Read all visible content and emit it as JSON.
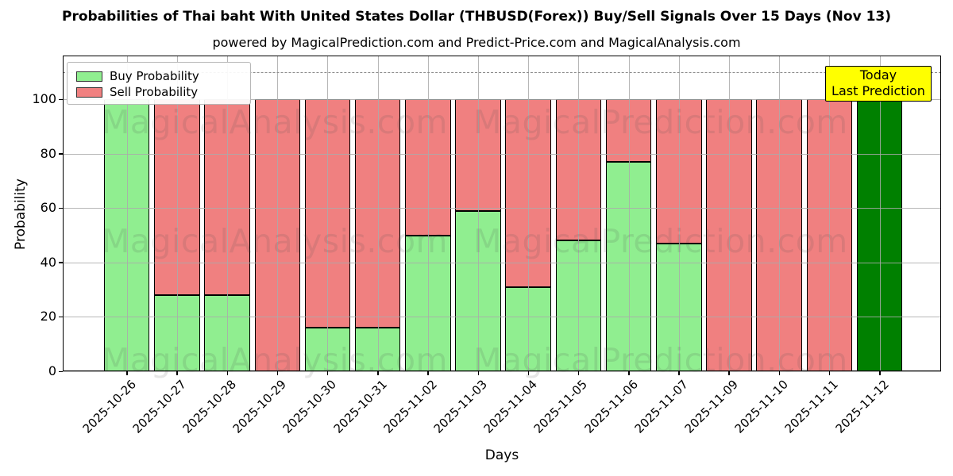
{
  "title": "Probabilities of Thai baht With United States Dollar (THBUSD(Forex)) Buy/Sell Signals Over 15 Days (Nov 13)",
  "subtitle": "powered by MagicalPrediction.com and Predict-Price.com and MagicalAnalysis.com",
  "axes": {
    "xlabel": "Days",
    "ylabel": "Probability",
    "yticks": [
      0,
      20,
      40,
      60,
      80,
      100
    ]
  },
  "legend": {
    "items": [
      {
        "label": "Buy Probability",
        "color": "#90ee90"
      },
      {
        "label": "Sell Probability",
        "color": "#f08080"
      }
    ]
  },
  "annotation": {
    "lines": [
      "Today",
      "Last Prediction"
    ],
    "bg_color": "#ffff00"
  },
  "watermarks": [
    "MagicalAnalysis.com",
    "MagicalPrediction.com"
  ],
  "chart_data": {
    "type": "bar",
    "stacked": true,
    "title": "Probabilities of Thai baht With United States Dollar (THBUSD(Forex)) Buy/Sell Signals Over 15 Days (Nov 13)",
    "xlabel": "Days",
    "ylabel": "Probability",
    "ylim": [
      0,
      116
    ],
    "grid": true,
    "legend_position": "upper left",
    "dashed_line_y": 110,
    "categories": [
      "2025-10-26",
      "2025-10-27",
      "2025-10-28",
      "2025-10-29",
      "2025-10-30",
      "2025-10-31",
      "2025-11-02",
      "2025-11-03",
      "2025-11-04",
      "2025-11-05",
      "2025-11-06",
      "2025-11-07",
      "2025-11-09",
      "2025-11-10",
      "2025-11-11",
      "2025-11-12"
    ],
    "series": [
      {
        "name": "Buy Probability",
        "color": "#90ee90",
        "values": [
          100,
          28,
          28,
          0,
          16,
          16,
          50,
          59,
          31,
          48,
          77,
          47,
          0,
          0,
          0,
          0
        ]
      },
      {
        "name": "Sell Probability",
        "color": "#f08080",
        "values": [
          0,
          72,
          72,
          100,
          84,
          84,
          50,
          41,
          69,
          52,
          23,
          53,
          100,
          100,
          100,
          0
        ]
      }
    ],
    "today_bar": {
      "index": 15,
      "category": "2025-11-12",
      "value": 100,
      "color": "#008000"
    }
  }
}
